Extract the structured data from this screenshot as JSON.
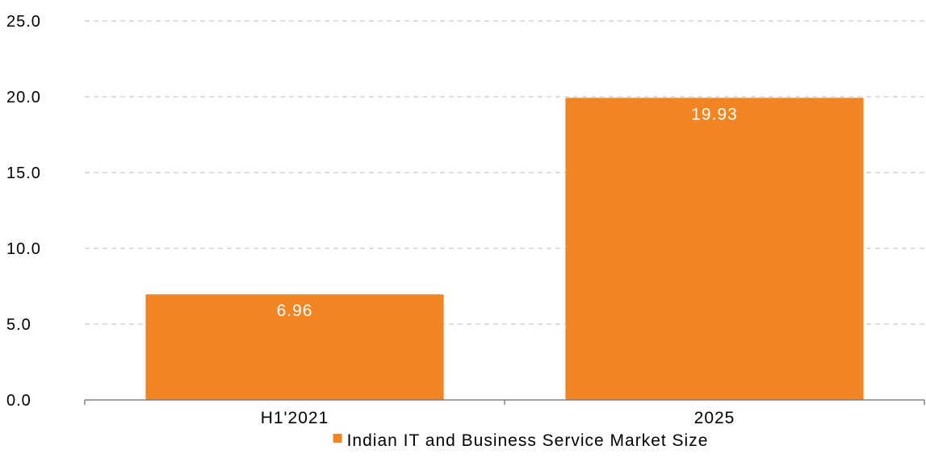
{
  "chart_data": {
    "type": "bar",
    "categories": [
      "H1'2021",
      "2025"
    ],
    "series": [
      {
        "name": "Indian IT and Business Service Market Size",
        "values": [
          6.96,
          19.93
        ],
        "data_labels": [
          "6.96",
          "19.93"
        ]
      }
    ],
    "ylim": [
      0,
      25
    ],
    "yticks": [
      0,
      5,
      10,
      15,
      20,
      25
    ],
    "ytick_labels": [
      "0.0",
      "5.0",
      "10.0",
      "15.0",
      "20.0",
      "25.0"
    ],
    "title": "",
    "xlabel": "",
    "ylabel": "",
    "grid": true,
    "legend_position": "bottom",
    "colors": {
      "bar": "#F28523",
      "grid": "#BFBFBF",
      "axis": "#808080",
      "data_label": "#FFFFFF"
    }
  }
}
